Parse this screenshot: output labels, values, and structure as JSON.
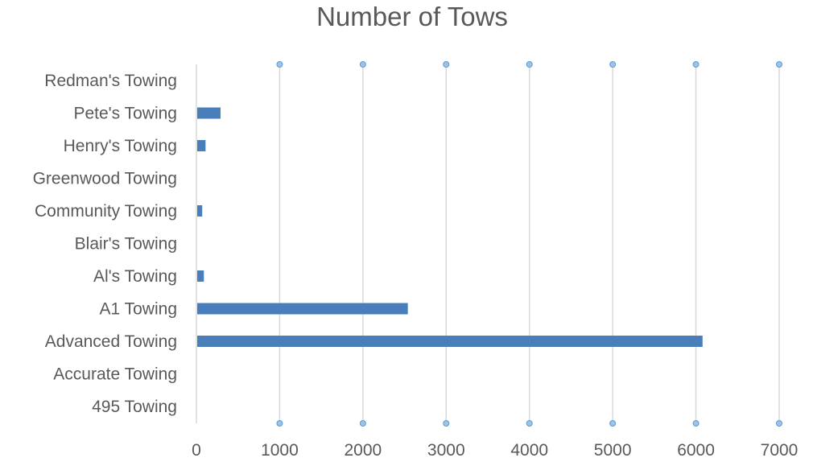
{
  "chart_data": {
    "type": "bar",
    "orientation": "horizontal",
    "title": "Number of Tows",
    "categories": [
      "Redman's Towing",
      "Pete's Towing",
      "Henry's Towing",
      "Greenwood Towing",
      "Community Towing",
      "Blair's Towing",
      "Al's Towing",
      "A1 Towing",
      "Advanced Towing",
      "Accurate Towing",
      "495 Towing"
    ],
    "values": [
      0,
      280,
      100,
      0,
      60,
      0,
      80,
      2530,
      6070,
      0,
      0
    ],
    "xlim": [
      0,
      7000
    ],
    "xticks": [
      0,
      1000,
      2000,
      3000,
      4000,
      5000,
      6000,
      7000
    ],
    "xtick_labels": [
      "0",
      "1000",
      "2000",
      "3000",
      "4000",
      "5000",
      "6000",
      "7000"
    ],
    "grid": "vertical",
    "legend": "none",
    "colors": {
      "bar": "#4a7ebb",
      "grid": "#d9d9d9",
      "axis": "#d9d9d9",
      "marker_fill": "#9dc3e6",
      "marker_stroke": "#5b9bd5",
      "text": "#595959"
    }
  }
}
